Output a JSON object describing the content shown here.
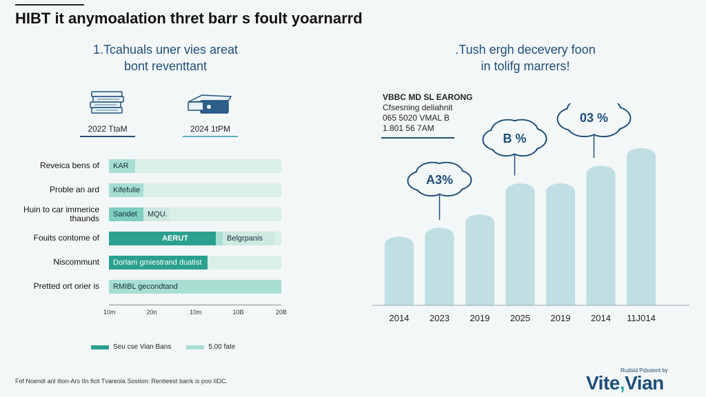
{
  "header": {
    "title": "HIBT it anymoalation thret barr s foult yoarnarrd"
  },
  "left_panel": {
    "subtitle_line1": "1.Tcahuals uner vies areat",
    "subtitle_line2": "bont reventtant",
    "years": [
      {
        "label": "2022 TtaM",
        "icon": "stacked-money-icon"
      },
      {
        "label": "2024 1tPM",
        "icon": "wallet-cash-icon"
      }
    ]
  },
  "right_panel": {
    "subtitle_line1": ".Tush ergh decevery foon",
    "subtitle_line2": "in tolifg marrers!",
    "legend_lines": [
      "VBBC MD SL EARONG",
      "Cfsesning deliahnit",
      "065 5020 VMAL B",
      "1.801 56 7AM"
    ],
    "bubbles": [
      "A3%",
      "B %",
      "03 %"
    ]
  },
  "footer": {
    "note": "Fof Noendi anl Ilion-Ars IIn ficit Tvareola Sostion: Rentieest barrk is poo IIDC.",
    "brand_small": "Rudsld Pdsstent by",
    "brand_main": "Vite",
    "brand_sep": ",",
    "brand_end": "Vian"
  },
  "colors": {
    "dark_teal": "#2aa08e",
    "mid_teal": "#7fcfc1",
    "light_teal": "#a9ded3",
    "track": "#d9efe9",
    "column": "#bfdfe3",
    "navy": "#1f4e79"
  },
  "chart_data": [
    {
      "type": "bar",
      "orientation": "horizontal",
      "stacked": true,
      "categories": [
        "Reveica bens of",
        "Proble an ard",
        "Huin to car immerice thaunds",
        "Fouits contome of",
        "Niscommunt",
        "Pretted ort orier is"
      ],
      "segments": [
        [
          {
            "text": "KAR",
            "value": 15,
            "color": "#a9ded3"
          }
        ],
        [
          {
            "text": "Kifefulie",
            "value": 20,
            "color": "#a9ded3"
          }
        ],
        [
          {
            "text": "Sandet",
            "value": 20,
            "color": "#7fcfc1"
          },
          {
            "text": "MQU.",
            "value": 15,
            "color": "#cfe9e1"
          }
        ],
        [
          {
            "text": "AERUT",
            "value": 62,
            "color": "#2aa08e"
          },
          {
            "text": "",
            "value": 4,
            "color": "#a9ded3"
          },
          {
            "text": "Belgrpanis",
            "value": 30,
            "color": "#cfe9e1"
          }
        ],
        [
          {
            "text": "Dorlam gmiestrand duatist",
            "value": 57,
            "color": "#2aa08e"
          }
        ],
        [
          {
            "text": "RMIBL gecondtand",
            "value": 100,
            "color": "#a9ded3"
          }
        ]
      ],
      "xticks": [
        "10m",
        "20n",
        "10m",
        "10B",
        "20B"
      ],
      "xlim": [
        0,
        100
      ],
      "legend": [
        {
          "label": "Seu cse Vian Bans",
          "color": "#2aa08e"
        },
        {
          "label": "5.00 fate",
          "color": "#a9ded3"
        }
      ]
    },
    {
      "type": "bar",
      "categories": [
        "2014",
        "2023",
        "2019",
        "2025",
        "2019",
        "2014",
        "11J014"
      ],
      "values": [
        34,
        38,
        44,
        58,
        58,
        66,
        74
      ],
      "ylim": [
        0,
        85
      ],
      "annotations": [
        {
          "text": "A3%",
          "category_index": 1
        },
        {
          "text": "B %",
          "category_index": 3
        },
        {
          "text": "03 %",
          "category_index": 5
        }
      ]
    }
  ]
}
